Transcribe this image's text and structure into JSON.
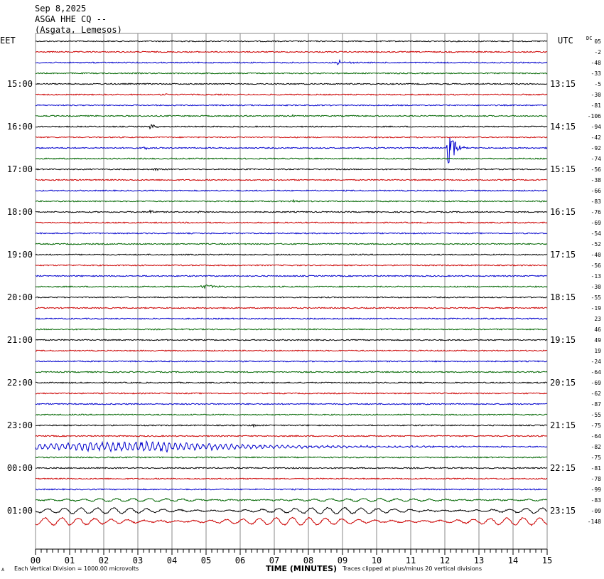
{
  "header": {
    "date": "Sep 8,2025",
    "station": "ASGA HHE CQ --",
    "location": "(Asgata, Lemesos)"
  },
  "left_tz": "EET",
  "right_tz": "UTC",
  "dc_label": "DC",
  "footer": {
    "scale_note": "Each Vertical Division = 1000.00 microvolts",
    "xlabel": "TIME (MINUTES)",
    "clip_note": "Traces clipped at plus/minus 20 vertical divisions",
    "corner_mark": "A"
  },
  "colors": {
    "black": "#000000",
    "red": "#cc0000",
    "blue": "#0000cc",
    "green": "#006600",
    "grid": "#888888"
  },
  "chart_data": {
    "type": "line",
    "xlabel": "TIME (MINUTES)",
    "xlim": [
      0,
      15
    ],
    "x_ticks": [
      "00",
      "01",
      "02",
      "03",
      "04",
      "05",
      "06",
      "07",
      "08",
      "09",
      "10",
      "11",
      "12",
      "13",
      "14",
      "15"
    ],
    "row_minutes": 15,
    "color_cycle": [
      "black",
      "red",
      "blue",
      "green"
    ],
    "left_hour_labels": [
      {
        "row": 4,
        "label": "15:00"
      },
      {
        "row": 8,
        "label": "16:00"
      },
      {
        "row": 12,
        "label": "17:00"
      },
      {
        "row": 16,
        "label": "18:00"
      },
      {
        "row": 20,
        "label": "19:00"
      },
      {
        "row": 24,
        "label": "20:00"
      },
      {
        "row": 28,
        "label": "21:00"
      },
      {
        "row": 32,
        "label": "22:00"
      },
      {
        "row": 36,
        "label": "23:00"
      },
      {
        "row": 40,
        "label": "00:00"
      },
      {
        "row": 44,
        "label": "01:00"
      }
    ],
    "right_hour_labels": [
      {
        "row": 4,
        "label": "13:15"
      },
      {
        "row": 8,
        "label": "14:15"
      },
      {
        "row": 12,
        "label": "15:15"
      },
      {
        "row": 16,
        "label": "16:15"
      },
      {
        "row": 20,
        "label": "17:15"
      },
      {
        "row": 24,
        "label": "18:15"
      },
      {
        "row": 28,
        "label": "19:15"
      },
      {
        "row": 32,
        "label": "20:15"
      },
      {
        "row": 36,
        "label": "21:15"
      },
      {
        "row": 40,
        "label": "22:15"
      },
      {
        "row": 44,
        "label": "23:15"
      }
    ],
    "dc_offsets": [
      "05",
      "-2",
      "-48",
      "-33",
      "-5",
      "-30",
      "-81",
      "-106",
      "-94",
      "-42",
      "-92",
      "-74",
      "-56",
      "-38",
      "-66",
      "-83",
      "-76",
      "-69",
      "-54",
      "-52",
      "-40",
      "-56",
      "-13",
      "-30",
      "-55",
      "-19",
      "23",
      "46",
      "49",
      "19",
      "-24",
      "-64",
      "-69",
      "-62",
      "-87",
      "-55",
      "-75",
      "-64",
      "-82",
      "-75",
      "-81",
      "-78",
      "-99",
      "-83",
      "-09",
      "-148"
    ],
    "events": [
      {
        "row": 2,
        "minute": 8.9,
        "amplitude": 3,
        "duration": 0.5
      },
      {
        "row": 5,
        "minute": 3.7,
        "amplitude": 2,
        "duration": 0.5
      },
      {
        "row": 7,
        "minute": 7.5,
        "amplitude": 2,
        "duration": 0.3
      },
      {
        "row": 8,
        "minute": 3.4,
        "amplitude": 3,
        "duration": 0.3
      },
      {
        "row": 10,
        "minute": 12.1,
        "amplitude": 22,
        "duration": 0.5
      },
      {
        "row": 10,
        "minute": 3.2,
        "amplitude": 2,
        "duration": 0.3
      },
      {
        "row": 12,
        "minute": 3.5,
        "amplitude": 2,
        "duration": 0.3
      },
      {
        "row": 15,
        "minute": 7.6,
        "amplitude": 2,
        "duration": 0.3
      },
      {
        "row": 16,
        "minute": 3.4,
        "amplitude": 3,
        "duration": 0.2
      },
      {
        "row": 16,
        "minute": 4.8,
        "amplitude": 2,
        "duration": 0.2
      },
      {
        "row": 23,
        "minute": 4.9,
        "amplitude": 3,
        "duration": 0.9
      },
      {
        "row": 36,
        "minute": 6.4,
        "amplitude": 3,
        "duration": 0.1
      }
    ],
    "teleseism": {
      "row": 38,
      "start_minute": 0,
      "peak_minute": 3.3,
      "end_minute": 15,
      "amplitude": 9
    },
    "long_period_rows": [
      {
        "row": 43,
        "amplitude": 2
      },
      {
        "row": 44,
        "amplitude": 4
      },
      {
        "row": 45,
        "amplitude": 5
      }
    ]
  }
}
